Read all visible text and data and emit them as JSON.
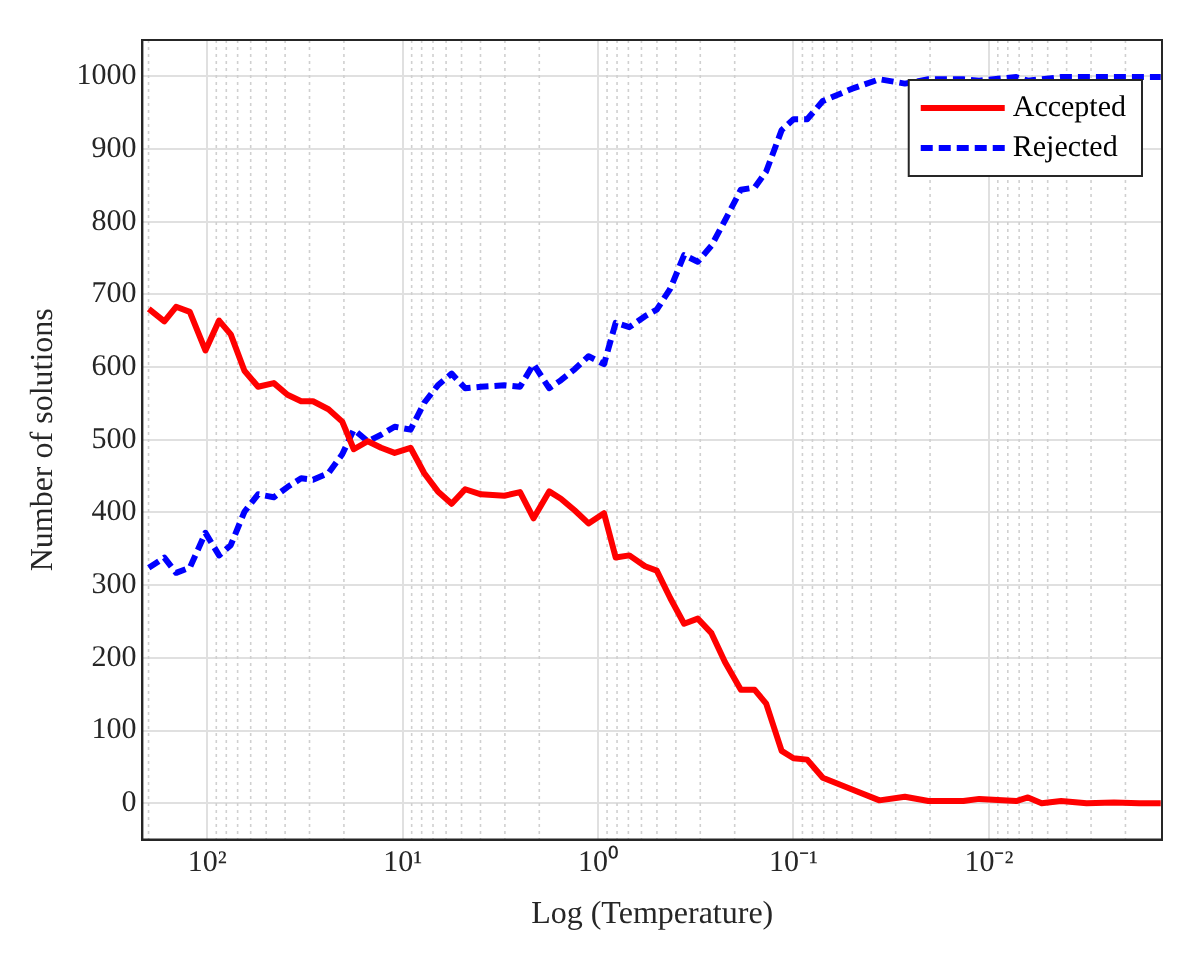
{
  "chart_data": {
    "type": "line",
    "xlabel": "Log (Temperature)",
    "ylabel": "Number of solutions",
    "log": "x",
    "grid": true,
    "legend": "top right",
    "marker": "none",
    "x": [
      199.5,
      166,
      144.5,
      123,
      102.3,
      87.1,
      75.9,
      64.6,
      55,
      45.7,
      38.9,
      33.1,
      28.8,
      24,
      20.4,
      17.8,
      15.1,
      12.9,
      11,
      9.12,
      7.76,
      6.61,
      5.62,
      4.79,
      3.98,
      3.02,
      2.51,
      2.14,
      1.78,
      1.55,
      1.32,
      1.12,
      0.933,
      0.813,
      0.692,
      0.575,
      0.501,
      0.427,
      0.363,
      0.309,
      0.263,
      0.224,
      0.186,
      0.158,
      0.138,
      0.115,
      0.1,
      0.0851,
      0.0708,
      0.0501,
      0.0363,
      0.0269,
      0.0204,
      0.0135,
      0.0112,
      0.00724,
      0.00631,
      0.00537,
      0.00427,
      0.00316,
      0.00229,
      0.0017,
      0.00132
    ],
    "series": [
      {
        "name": "Accepted",
        "color": "#ff0000",
        "line_style": "solid",
        "values": [
          680,
          663,
          683,
          676,
          623,
          664,
          645,
          595,
          573,
          578,
          562,
          553,
          553,
          542,
          525,
          487,
          498,
          489,
          482,
          489,
          454,
          429,
          412,
          432,
          425,
          423,
          428,
          392,
          429,
          419,
          403,
          385,
          399,
          338,
          341,
          326,
          320,
          282,
          247,
          254,
          234,
          194,
          156,
          156,
          137,
          72,
          62,
          60,
          35,
          19,
          4,
          9,
          3,
          3,
          6,
          3,
          8,
          0,
          3,
          0,
          1,
          0,
          0
        ]
      },
      {
        "name": "Rejected",
        "color": "#0000ff",
        "line_style": "dashed",
        "values": [
          324,
          338,
          317,
          324,
          372,
          341,
          355,
          401,
          425,
          421,
          435,
          447,
          445,
          454,
          480,
          514,
          498,
          507,
          518,
          514,
          551,
          575,
          591,
          571,
          573,
          575,
          573,
          604,
          571,
          582,
          597,
          615,
          604,
          661,
          655,
          670,
          679,
          708,
          754,
          745,
          767,
          802,
          844,
          847,
          869,
          926,
          941,
          941,
          966,
          983,
          996,
          990,
          996,
          996,
          994,
          999,
          994,
          996,
          999,
          999,
          999,
          999,
          999
        ]
      }
    ],
    "xlim": [
      215,
      0.0013
    ],
    "xticks": [
      {
        "value": 200,
        "label": null
      },
      {
        "value": 100,
        "label": "10²"
      },
      {
        "value": 90,
        "label": null
      },
      {
        "value": 80,
        "label": null
      },
      {
        "value": 70,
        "label": null
      },
      {
        "value": 60,
        "label": null
      },
      {
        "value": 50,
        "label": null
      },
      {
        "value": 40,
        "label": null
      },
      {
        "value": 30,
        "label": null
      },
      {
        "value": 20,
        "label": null
      },
      {
        "value": 10,
        "label": "10¹"
      },
      {
        "value": 9,
        "label": null
      },
      {
        "value": 8,
        "label": null
      },
      {
        "value": 7,
        "label": null
      },
      {
        "value": 6,
        "label": null
      },
      {
        "value": 5,
        "label": null
      },
      {
        "value": 4,
        "label": null
      },
      {
        "value": 3,
        "label": null
      },
      {
        "value": 2,
        "label": null
      },
      {
        "value": 1,
        "label": "10⁰"
      },
      {
        "value": 0.9,
        "label": null
      },
      {
        "value": 0.8,
        "label": null
      },
      {
        "value": 0.7,
        "label": null
      },
      {
        "value": 0.6,
        "label": null
      },
      {
        "value": 0.5,
        "label": null
      },
      {
        "value": 0.4,
        "label": null
      },
      {
        "value": 0.3,
        "label": null
      },
      {
        "value": 0.2,
        "label": null
      },
      {
        "value": 0.1,
        "label": "10⁻¹"
      },
      {
        "value": 0.09,
        "label": null
      },
      {
        "value": 0.08,
        "label": null
      },
      {
        "value": 0.07,
        "label": null
      },
      {
        "value": 0.06,
        "label": null
      },
      {
        "value": 0.05,
        "label": null
      },
      {
        "value": 0.04,
        "label": null
      },
      {
        "value": 0.03,
        "label": null
      },
      {
        "value": 0.02,
        "label": null
      },
      {
        "value": 0.01,
        "label": "10⁻²"
      },
      {
        "value": 0.009,
        "label": null
      },
      {
        "value": 0.008,
        "label": null
      },
      {
        "value": 0.007,
        "label": null
      },
      {
        "value": 0.006,
        "label": null
      },
      {
        "value": 0.005,
        "label": null
      },
      {
        "value": 0.004,
        "label": null
      },
      {
        "value": 0.003,
        "label": null
      },
      {
        "value": 0.002,
        "label": null
      }
    ],
    "ylim": [
      -50,
      1050
    ],
    "yticks": [
      0,
      100,
      200,
      300,
      400,
      500,
      600,
      700,
      800,
      900,
      1000
    ]
  }
}
